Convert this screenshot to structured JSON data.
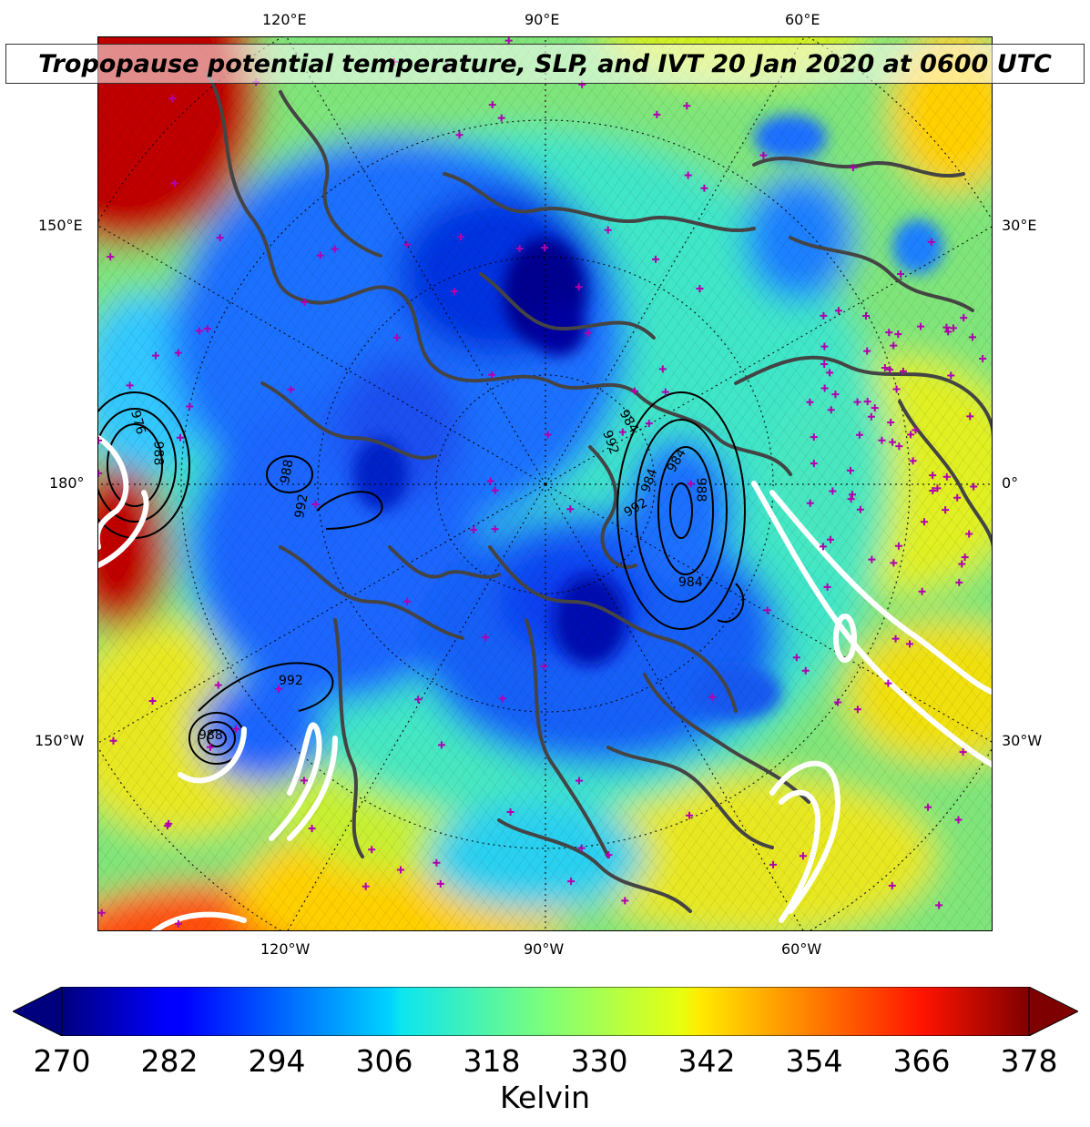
{
  "title": "Tropopause potential temperature, SLP, and IVT 20 Jan 2020 at 0600 UTC",
  "map": {
    "projection": "north-polar-stereographic",
    "field_colormap": "jet",
    "overlays": [
      "sea-level-pressure contours (black)",
      "IVT contours (white)",
      "coastlines (gray)",
      "plus markers (magenta)"
    ],
    "colors": {
      "coastline": "#444444",
      "markers": "#b000b0",
      "ivt": "#ffffff",
      "slp": "#000000"
    },
    "longitude_labels": {
      "top": [
        "120°E",
        "90°E",
        "60°E"
      ],
      "bottom": [
        "120°W",
        "90°W",
        "60°W"
      ],
      "left": [
        "150°E",
        "180°",
        "150°W"
      ],
      "right": [
        "30°E",
        "0°",
        "30°W"
      ]
    },
    "slp_labels": [
      "984",
      "984",
      "992",
      "984",
      "988",
      "984",
      "992",
      "992",
      "992",
      "988",
      "988",
      "976",
      "988"
    ]
  },
  "colorbar": {
    "label": "Kelvin",
    "min": 270,
    "max": 378,
    "ticks": [
      "270",
      "282",
      "294",
      "306",
      "318",
      "330",
      "342",
      "354",
      "366",
      "378"
    ],
    "extend": "both"
  }
}
